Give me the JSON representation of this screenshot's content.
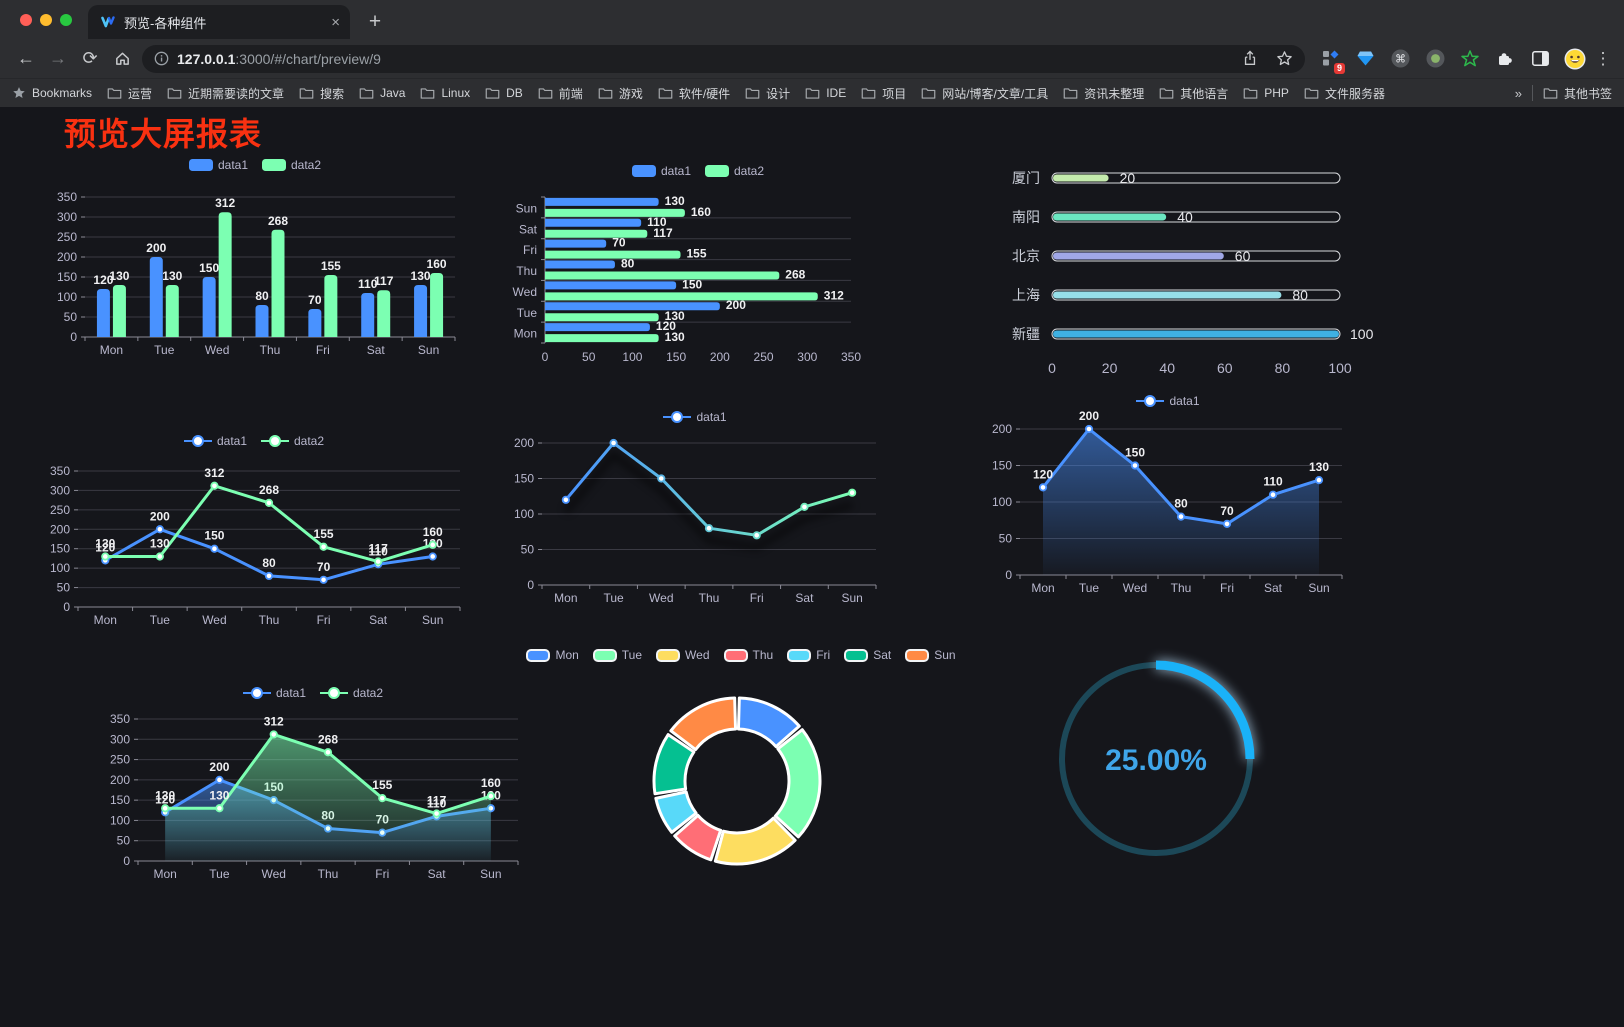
{
  "browser": {
    "tab_title": "预览-各种组件",
    "new_tab_label": "+",
    "close_label": "×",
    "url_host": "127.0.0.1",
    "url_path": ":3000/#/chart/preview/9",
    "extension_badge": "9",
    "menu_icon": "⋮",
    "back_icon": "←",
    "forward_icon": "→",
    "reload_icon": "⟳",
    "bookmarks_label": "Bookmarks",
    "bookmarks": [
      "运营",
      "近期需要读的文章",
      "搜索",
      "Java",
      "Linux",
      "DB",
      "前端",
      "游戏",
      "软件/硬件",
      "设计",
      "IDE",
      "项目",
      "网站/博客/文章/工具",
      "资讯未整理",
      "其他语言",
      "PHP",
      "文件服务器"
    ],
    "bookmarks_overflow": "»",
    "other_bookmarks": "其他书签"
  },
  "page": {
    "title": "预览大屏报表",
    "title_color": "#f93111",
    "background": "#15161b"
  },
  "chart_data": [
    {
      "id": "bar-vertical",
      "type": "bar",
      "categories": [
        "Mon",
        "Tue",
        "Wed",
        "Thu",
        "Fri",
        "Sat",
        "Sun"
      ],
      "series": [
        {
          "name": "data1",
          "color": "#4992ff",
          "values": [
            120,
            200,
            150,
            80,
            70,
            110,
            130
          ]
        },
        {
          "name": "data2",
          "color": "#7cffb2",
          "values": [
            130,
            130,
            312,
            268,
            155,
            117,
            160
          ]
        }
      ],
      "ylim": [
        0,
        350
      ],
      "ytick_step": 50,
      "legend_position": "top",
      "grid": true,
      "value_labels": true
    },
    {
      "id": "bar-horizontal",
      "type": "bar-horizontal",
      "categories": [
        "Mon",
        "Tue",
        "Wed",
        "Thu",
        "Fri",
        "Sat",
        "Sun"
      ],
      "display_order_top_to_bottom": [
        "Sun",
        "Sat",
        "Fri",
        "Thu",
        "Wed",
        "Tue",
        "Mon"
      ],
      "series": [
        {
          "name": "data1",
          "color": "#4992ff",
          "values": [
            120,
            200,
            150,
            80,
            70,
            110,
            130
          ]
        },
        {
          "name": "data2",
          "color": "#7cffb2",
          "values": [
            130,
            130,
            312,
            268,
            155,
            117,
            160
          ]
        }
      ],
      "xlim": [
        0,
        350
      ],
      "xtick_step": 50,
      "legend_position": "top",
      "value_labels": true
    },
    {
      "id": "progress",
      "type": "bar-horizontal",
      "variant": "progress",
      "categories": [
        "厦门",
        "南阳",
        "北京",
        "上海",
        "新疆"
      ],
      "values": [
        20,
        40,
        60,
        80,
        100
      ],
      "colors": [
        "#c4ebad",
        "#6be6c1",
        "#a0a7e6",
        "#96dee8",
        "#3fb1e3"
      ],
      "xlim": [
        0,
        100
      ],
      "xticks": [
        0,
        20,
        40,
        60,
        80,
        100
      ],
      "value_labels": true
    },
    {
      "id": "line-two",
      "type": "line",
      "categories": [
        "Mon",
        "Tue",
        "Wed",
        "Thu",
        "Fri",
        "Sat",
        "Sun"
      ],
      "series": [
        {
          "name": "data1",
          "color": "#4992ff",
          "values": [
            120,
            200,
            150,
            80,
            70,
            110,
            130
          ]
        },
        {
          "name": "data2",
          "color": "#7cffb2",
          "values": [
            130,
            130,
            312,
            268,
            155,
            117,
            160
          ]
        }
      ],
      "ylim": [
        0,
        350
      ],
      "ytick_step": 50,
      "legend_position": "top",
      "value_labels": true
    },
    {
      "id": "line-gradient",
      "type": "line",
      "variant": "gradient-stroke",
      "shadow": true,
      "categories": [
        "Mon",
        "Tue",
        "Wed",
        "Thu",
        "Fri",
        "Sat",
        "Sun"
      ],
      "series": [
        {
          "name": "data1",
          "gradient": [
            "#4992ff",
            "#7cffb2"
          ],
          "values": [
            120,
            200,
            150,
            80,
            70,
            110,
            130
          ]
        }
      ],
      "ylim": [
        0,
        200
      ],
      "ytick_step": 50,
      "legend_position": "top",
      "value_labels": false
    },
    {
      "id": "area-single",
      "type": "area",
      "categories": [
        "Mon",
        "Tue",
        "Wed",
        "Thu",
        "Fri",
        "Sat",
        "Sun"
      ],
      "series": [
        {
          "name": "data1",
          "color": "#4992ff",
          "values": [
            120,
            200,
            150,
            80,
            70,
            110,
            130
          ]
        }
      ],
      "ylim": [
        0,
        200
      ],
      "ytick_step": 50,
      "legend_position": "top",
      "value_labels": true
    },
    {
      "id": "area-two",
      "type": "area",
      "categories": [
        "Mon",
        "Tue",
        "Wed",
        "Thu",
        "Fri",
        "Sat",
        "Sun"
      ],
      "series": [
        {
          "name": "data1",
          "color": "#4992ff",
          "values": [
            120,
            200,
            150,
            80,
            70,
            110,
            130
          ]
        },
        {
          "name": "data2",
          "color": "#7cffb2",
          "values": [
            130,
            130,
            312,
            268,
            155,
            117,
            160
          ]
        }
      ],
      "ylim": [
        0,
        350
      ],
      "ytick_step": 50,
      "legend_position": "top",
      "value_labels": true
    },
    {
      "id": "donut",
      "type": "pie",
      "categories": [
        "Mon",
        "Tue",
        "Wed",
        "Thu",
        "Fri",
        "Sat",
        "Sun"
      ],
      "values": [
        120,
        200,
        150,
        80,
        70,
        110,
        130
      ],
      "colors": [
        "#4992ff",
        "#7cffb2",
        "#fddd60",
        "#ff6e76",
        "#58d9f9",
        "#05c091",
        "#ff8a45"
      ],
      "legend_position": "top"
    },
    {
      "id": "gauge",
      "type": "gauge",
      "value": 25,
      "label": "25.00%",
      "color": "#1ab2f8",
      "track_color": "#1c4858",
      "text_color": "#3fa5e9"
    }
  ]
}
